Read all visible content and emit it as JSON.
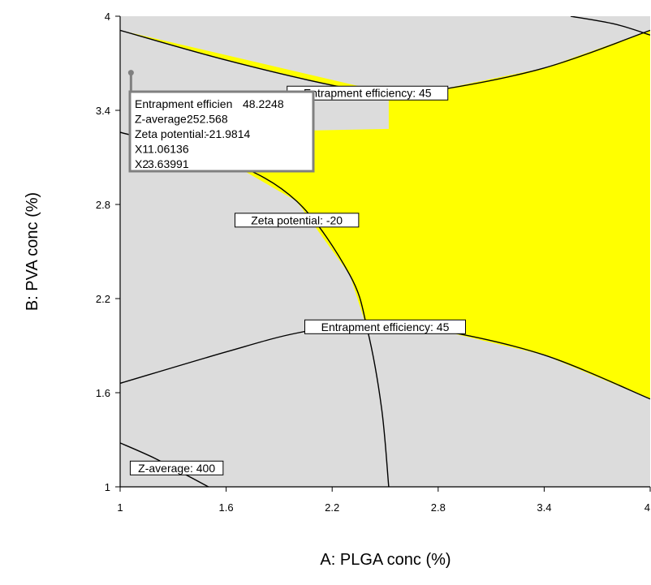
{
  "chart_data": {
    "type": "contour",
    "title": "",
    "xlabel": "A: PLGA conc (%)",
    "ylabel": "B: PVA conc (%)",
    "xlim": [
      1,
      4
    ],
    "ylim": [
      1,
      4
    ],
    "x_ticks": [
      "1",
      "1.6",
      "2.2",
      "2.8",
      "3.4",
      "4"
    ],
    "y_ticks": [
      "1",
      "1.6",
      "2.2",
      "2.8",
      "3.4",
      "4"
    ],
    "colors": {
      "design_space": "#ffff00",
      "outside": "#dcdcdc",
      "contour_line": "#000000",
      "flag_border": "#808080"
    },
    "contours": [
      {
        "response": "Entrapment efficiency",
        "level": 45,
        "label": "Entrapment efficiency: 45",
        "points": [
          [
            1.0,
            3.91
          ],
          [
            1.6,
            3.72
          ],
          [
            2.2,
            3.56
          ],
          [
            2.5,
            3.51
          ],
          [
            2.8,
            3.53
          ],
          [
            3.4,
            3.67
          ],
          [
            4.0,
            3.91
          ]
        ]
      },
      {
        "response": "Entrapment efficiency",
        "level": 45,
        "label": "Entrapment efficiency: 45",
        "points": [
          [
            1.0,
            1.66
          ],
          [
            1.6,
            1.86
          ],
          [
            2.0,
            1.98
          ],
          [
            2.4,
            2.04
          ],
          [
            2.8,
            2.0
          ],
          [
            3.4,
            1.84
          ],
          [
            4.0,
            1.56
          ]
        ]
      },
      {
        "response": "Zeta potential",
        "level": -20,
        "label": "Zeta potential: -20",
        "points": [
          [
            1.0,
            3.26
          ],
          [
            1.6,
            3.08
          ],
          [
            2.0,
            2.82
          ],
          [
            2.3,
            2.35
          ],
          [
            2.4,
            2.0
          ],
          [
            2.48,
            1.5
          ],
          [
            2.52,
            1.0
          ]
        ]
      },
      {
        "response": "Z-average",
        "level": 400,
        "label": "Z-average: 400",
        "points": [
          [
            1.0,
            1.28
          ],
          [
            1.2,
            1.18
          ],
          [
            1.4,
            1.06
          ],
          [
            1.5,
            1.0
          ]
        ]
      },
      {
        "response": "",
        "level": null,
        "label": "",
        "points": [
          [
            3.55,
            4.0
          ],
          [
            3.8,
            3.95
          ],
          [
            4.0,
            3.88
          ]
        ]
      }
    ],
    "flag": {
      "point": [
        1.06136,
        3.63991
      ],
      "rows": [
        {
          "label": "Entrapment efficien",
          "value": "48.2248"
        },
        {
          "label": "Z-average:",
          "value": "252.568"
        },
        {
          "label": "Zeta potential:",
          "value": "-21.9814"
        },
        {
          "label": "X1",
          "value": "1.06136"
        },
        {
          "label": "X2",
          "value": "3.63991"
        }
      ]
    }
  }
}
